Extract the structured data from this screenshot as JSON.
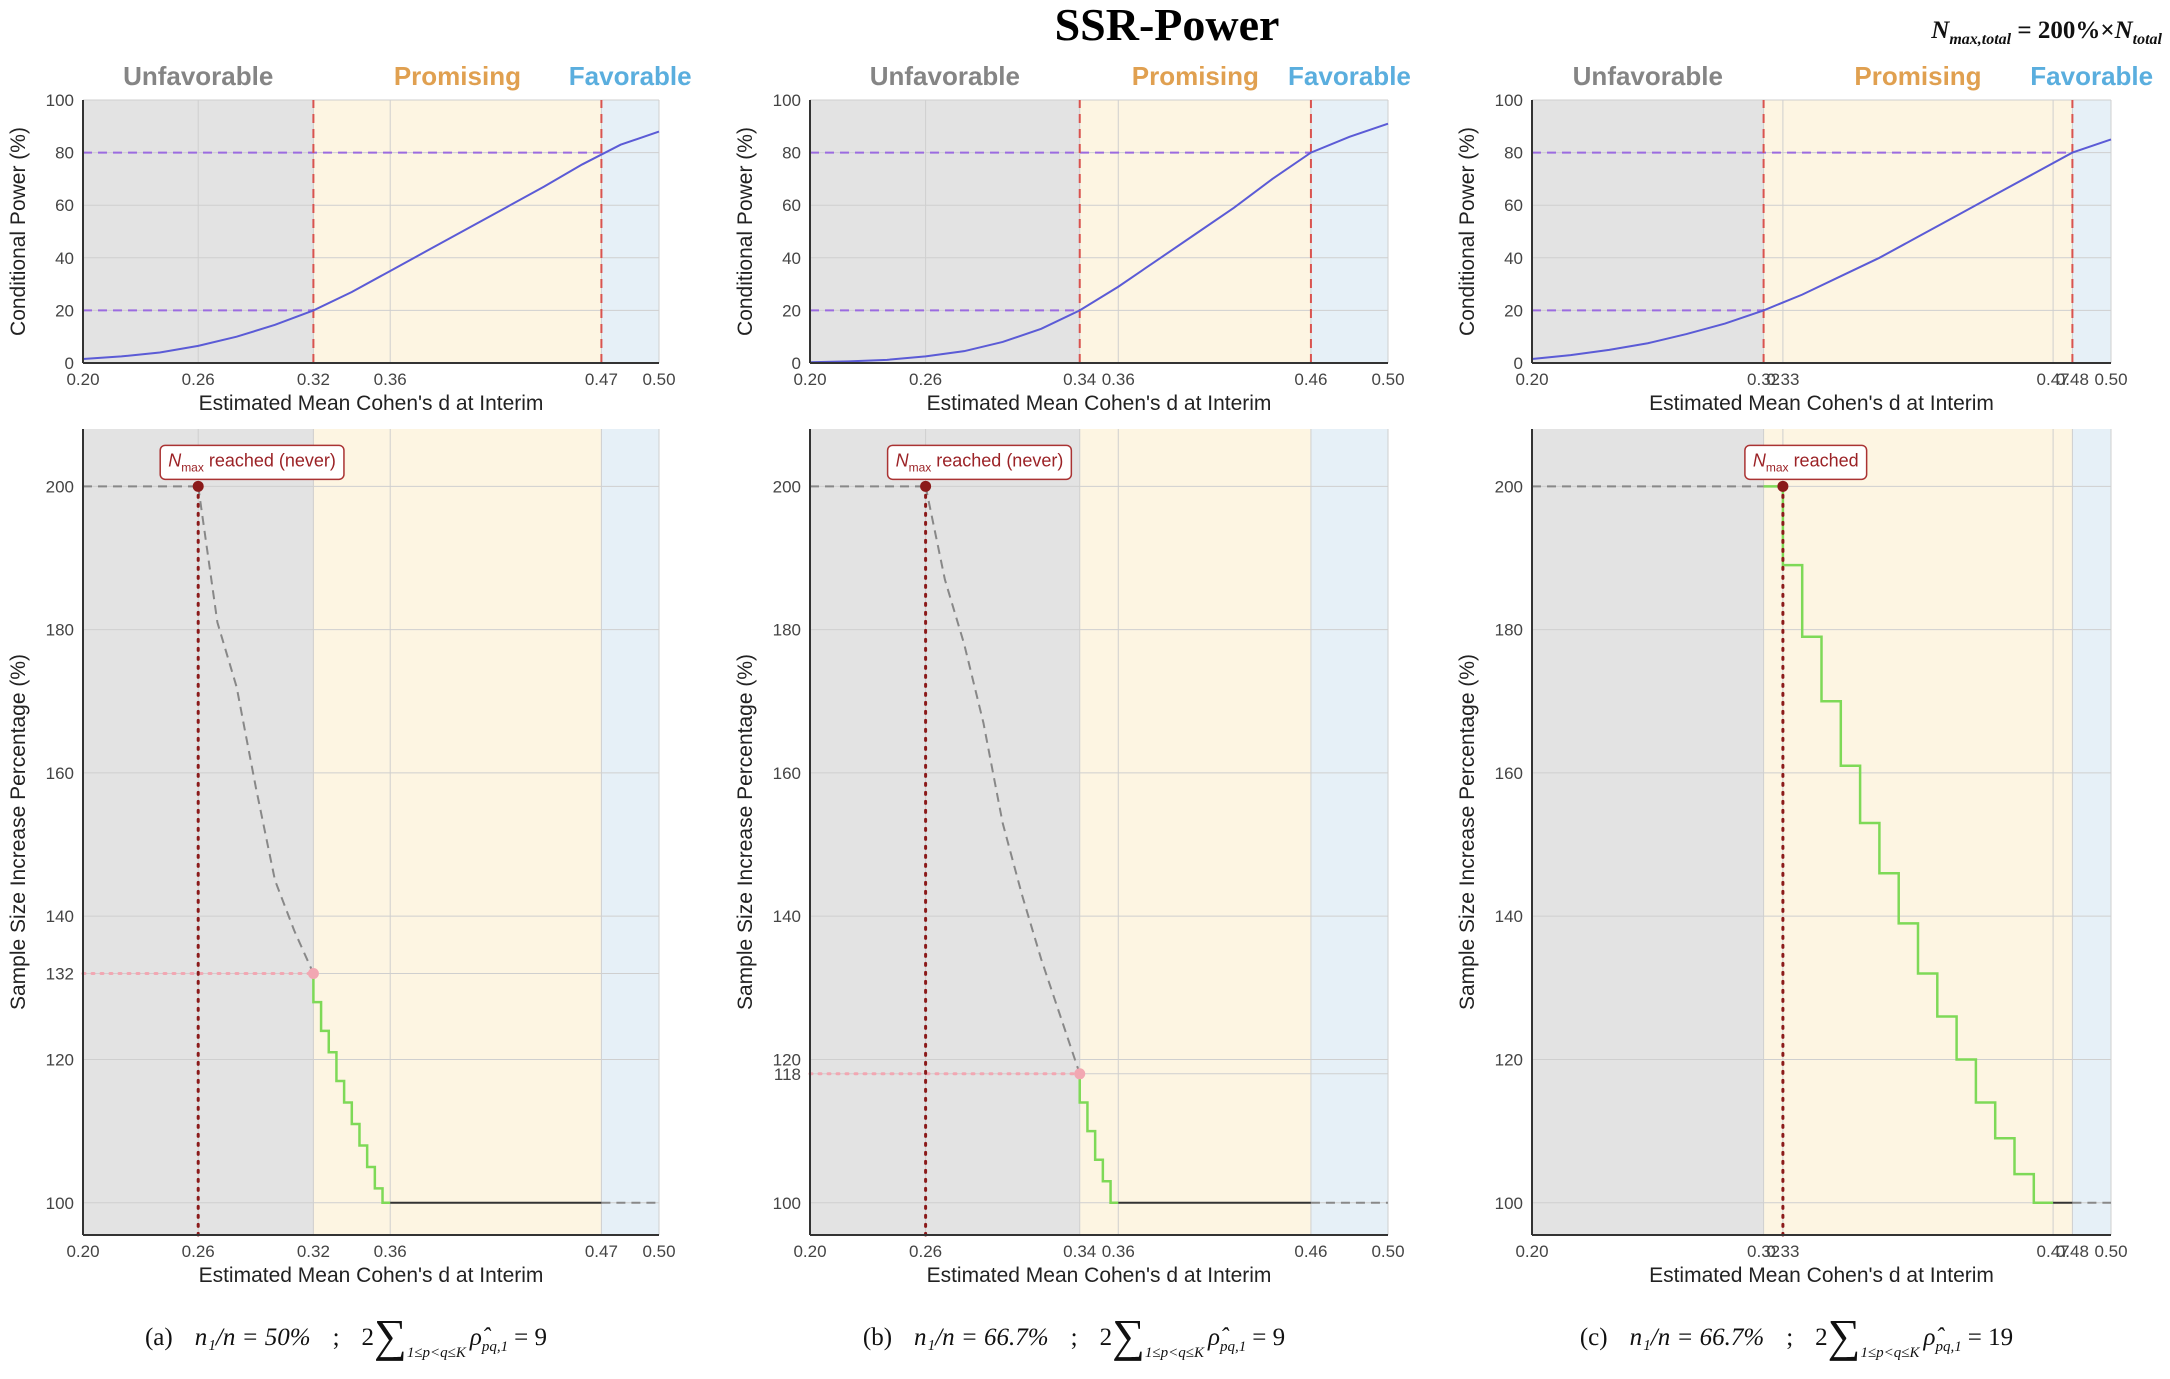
{
  "title": "SSR-Power",
  "formula": {
    "lhs": "N",
    "lhs_sub": "max,total",
    "op": " = 200%×",
    "rhs": "N",
    "rhs_sub": "total"
  },
  "chart_data": [
    {
      "type": "line",
      "xlabel": "Estimated Mean Cohen's d at Interim",
      "ylabel": "Conditional Power (%)",
      "xlim": [
        0.2,
        0.5
      ],
      "ylim": [
        0,
        100
      ],
      "xticks": [
        {
          "value": 0.2,
          "label": "0.20"
        },
        0.26,
        0.32,
        0.36,
        0.47,
        {
          "value": 0.5,
          "label": "0.50"
        }
      ],
      "yticks": [
        0,
        20,
        40,
        60,
        80,
        100
      ],
      "grid": true,
      "zones": [
        {
          "label": "Unfavorable",
          "from": 0.2,
          "to": 0.32,
          "color": "#e3e3e3",
          "label_color": "#858585"
        },
        {
          "label": "Promising",
          "from": 0.32,
          "to": 0.47,
          "color": "#fdf5e2",
          "label_color": "#e0a050"
        },
        {
          "label": "Favorable",
          "from": 0.47,
          "to": 0.5,
          "color": "#e6f0f7",
          "label_color": "#5aaede"
        }
      ],
      "series": [
        {
          "color": "#9b6be0",
          "dash": "dashed",
          "width": 2,
          "x": [
            0.2,
            0.32
          ],
          "values": [
            20,
            20
          ]
        },
        {
          "color": "#9b6be0",
          "dash": "dashed",
          "width": 2,
          "x": [
            0.2,
            0.47
          ],
          "values": [
            80,
            80
          ]
        },
        {
          "color": "#d9534f",
          "dash": "dashed",
          "width": 2,
          "x": [
            0.32,
            0.32
          ],
          "values": [
            0,
            100
          ]
        },
        {
          "color": "#d9534f",
          "dash": "dashed",
          "width": 2,
          "x": [
            0.47,
            0.47
          ],
          "values": [
            0,
            100
          ]
        },
        {
          "color": "#5b5bd6",
          "dash": "solid",
          "width": 2,
          "x": [
            0.2,
            0.22,
            0.24,
            0.26,
            0.28,
            0.3,
            0.32,
            0.34,
            0.36,
            0.38,
            0.4,
            0.42,
            0.44,
            0.46,
            0.48,
            0.5
          ],
          "values": [
            1.5,
            2.5,
            4,
            6.5,
            10,
            14.5,
            20,
            27,
            35,
            43,
            51,
            59,
            67,
            75.5,
            83,
            88
          ]
        }
      ]
    },
    {
      "type": "line",
      "xlabel": "Estimated Mean Cohen's d at Interim",
      "ylabel": "Conditional Power (%)",
      "xlim": [
        0.2,
        0.5
      ],
      "ylim": [
        0,
        100
      ],
      "xticks": [
        {
          "value": 0.2,
          "label": "0.20"
        },
        0.26,
        0.34,
        0.36,
        0.46,
        {
          "value": 0.5,
          "label": "0.50"
        }
      ],
      "yticks": [
        0,
        20,
        40,
        60,
        80,
        100
      ],
      "grid": true,
      "zones": [
        {
          "label": "Unfavorable",
          "from": 0.2,
          "to": 0.34,
          "color": "#e3e3e3",
          "label_color": "#858585"
        },
        {
          "label": "Promising",
          "from": 0.34,
          "to": 0.46,
          "color": "#fdf5e2",
          "label_color": "#e0a050"
        },
        {
          "label": "Favorable",
          "from": 0.46,
          "to": 0.5,
          "color": "#e6f0f7",
          "label_color": "#5aaede"
        }
      ],
      "series": [
        {
          "color": "#9b6be0",
          "dash": "dashed",
          "width": 2,
          "x": [
            0.2,
            0.34
          ],
          "values": [
            20,
            20
          ]
        },
        {
          "color": "#9b6be0",
          "dash": "dashed",
          "width": 2,
          "x": [
            0.2,
            0.46
          ],
          "values": [
            80,
            80
          ]
        },
        {
          "color": "#d9534f",
          "dash": "dashed",
          "width": 2,
          "x": [
            0.34,
            0.34
          ],
          "values": [
            0,
            100
          ]
        },
        {
          "color": "#d9534f",
          "dash": "dashed",
          "width": 2,
          "x": [
            0.46,
            0.46
          ],
          "values": [
            0,
            100
          ]
        },
        {
          "color": "#5b5bd6",
          "dash": "solid",
          "width": 2,
          "x": [
            0.2,
            0.22,
            0.24,
            0.26,
            0.28,
            0.3,
            0.32,
            0.34,
            0.36,
            0.38,
            0.4,
            0.42,
            0.44,
            0.46,
            0.48,
            0.5
          ],
          "values": [
            0.3,
            0.6,
            1.2,
            2.5,
            4.5,
            8,
            13,
            20,
            29,
            39,
            49,
            59,
            70,
            80,
            86,
            91
          ]
        }
      ]
    },
    {
      "type": "line",
      "xlabel": "Estimated Mean Cohen's d at Interim",
      "ylabel": "Conditional Power (%)",
      "xlim": [
        0.2,
        0.5
      ],
      "ylim": [
        0,
        100
      ],
      "xticks": [
        {
          "value": 0.2,
          "label": "0.20"
        },
        0.32,
        0.33,
        0.47,
        0.48,
        {
          "value": 0.5,
          "label": "0.50"
        }
      ],
      "yticks": [
        0,
        20,
        40,
        60,
        80,
        100
      ],
      "grid": true,
      "zones": [
        {
          "label": "Unfavorable",
          "from": 0.2,
          "to": 0.32,
          "color": "#e3e3e3",
          "label_color": "#858585"
        },
        {
          "label": "Promising",
          "from": 0.32,
          "to": 0.48,
          "color": "#fdf5e2",
          "label_color": "#e0a050"
        },
        {
          "label": "Favorable",
          "from": 0.48,
          "to": 0.5,
          "color": "#e6f0f7",
          "label_color": "#5aaede"
        }
      ],
      "series": [
        {
          "color": "#9b6be0",
          "dash": "dashed",
          "width": 2,
          "x": [
            0.2,
            0.32
          ],
          "values": [
            20,
            20
          ]
        },
        {
          "color": "#9b6be0",
          "dash": "dashed",
          "width": 2,
          "x": [
            0.2,
            0.48
          ],
          "values": [
            80,
            80
          ]
        },
        {
          "color": "#d9534f",
          "dash": "dashed",
          "width": 2,
          "x": [
            0.32,
            0.32
          ],
          "values": [
            0,
            100
          ]
        },
        {
          "color": "#d9534f",
          "dash": "dashed",
          "width": 2,
          "x": [
            0.48,
            0.48
          ],
          "values": [
            0,
            100
          ]
        },
        {
          "color": "#5b5bd6",
          "dash": "solid",
          "width": 2,
          "x": [
            0.2,
            0.22,
            0.24,
            0.26,
            0.28,
            0.3,
            0.32,
            0.34,
            0.36,
            0.38,
            0.4,
            0.42,
            0.44,
            0.46,
            0.48,
            0.5
          ],
          "values": [
            1.5,
            3,
            5,
            7.5,
            11,
            15,
            20,
            26,
            33,
            40,
            48,
            56,
            64,
            72,
            80,
            85
          ]
        }
      ]
    },
    {
      "type": "line",
      "xlabel": "Estimated Mean Cohen's d at Interim",
      "ylabel": "Sample Size Increase Percentage (%)",
      "xlim": [
        0.2,
        0.5
      ],
      "ylim": [
        95.5,
        208
      ],
      "xticks": [
        {
          "value": 0.2,
          "label": "0.20"
        },
        0.26,
        0.32,
        0.36,
        0.47,
        {
          "value": 0.5,
          "label": "0.50"
        }
      ],
      "yticks": [
        100,
        120,
        132,
        140,
        160,
        180,
        200
      ],
      "grid": true,
      "zones": [
        {
          "from": 0.2,
          "to": 0.32,
          "color": "#e3e3e3"
        },
        {
          "from": 0.32,
          "to": 0.47,
          "color": "#fdf5e2"
        },
        {
          "from": 0.47,
          "to": 0.5,
          "color": "#e6f0f7"
        }
      ],
      "series": [
        {
          "color": "#888888",
          "dash": "dashed",
          "width": 2,
          "x": [
            0.2,
            0.26
          ],
          "values": [
            200,
            200
          ]
        },
        {
          "color": "#f2a7b2",
          "dash": "dotted",
          "width": 3,
          "x": [
            0.2,
            0.32
          ],
          "values": [
            132,
            132
          ]
        },
        {
          "color": "#888888",
          "dash": "dashed",
          "width": 2,
          "x": [
            0.26,
            0.27,
            0.28,
            0.29,
            0.3,
            0.31,
            0.32
          ],
          "values": [
            200,
            181,
            172,
            158,
            145,
            138,
            132
          ]
        },
        {
          "color": "#7ed957",
          "dash": "solid",
          "width": 2.5,
          "step": true,
          "x": [
            0.32,
            0.324,
            0.328,
            0.332,
            0.336,
            0.34,
            0.344,
            0.348,
            0.352,
            0.356,
            0.36
          ],
          "values": [
            132,
            128,
            124,
            121,
            117,
            114,
            111,
            108,
            105,
            102,
            100
          ]
        },
        {
          "color": "#333333",
          "dash": "solid",
          "width": 2,
          "x": [
            0.36,
            0.47
          ],
          "values": [
            100,
            100
          ]
        },
        {
          "color": "#888888",
          "dash": "dashed",
          "width": 2,
          "x": [
            0.47,
            0.5
          ],
          "values": [
            100,
            100
          ]
        },
        {
          "color": "#8b1a1a",
          "dash": "dotted",
          "width": 3,
          "x": [
            0.26,
            0.26
          ],
          "values": [
            200,
            95.5
          ]
        }
      ],
      "points": [
        {
          "x": 0.26,
          "y": 200,
          "color": "#8b1a1a"
        },
        {
          "x": 0.32,
          "y": 132,
          "color": "#f2a7b2"
        }
      ],
      "annotation": {
        "x": 0.26,
        "y": 200,
        "symbol": "N",
        "subscript": "max",
        "text": "reached (never)"
      },
      "caption": {
        "label": "(a)",
        "ratio": "n₁/n = 50%",
        "separator": ";",
        "sum_coef": "2",
        "sum_symbol": "∑",
        "sum_range": "1≤p<q≤K",
        "sum_term": "ρ̂",
        "sum_term_sub": "pq,1",
        "sum_value": "= 9"
      }
    },
    {
      "type": "line",
      "xlabel": "Estimated Mean Cohen's d at Interim",
      "ylabel": "Sample Size Increase Percentage (%)",
      "xlim": [
        0.2,
        0.5
      ],
      "ylim": [
        95.5,
        208
      ],
      "xticks": [
        {
          "value": 0.2,
          "label": "0.20"
        },
        0.26,
        0.34,
        0.36,
        0.46,
        {
          "value": 0.5,
          "label": "0.50"
        }
      ],
      "yticks": [
        100,
        118,
        120,
        140,
        160,
        180,
        200
      ],
      "grid": true,
      "zones": [
        {
          "from": 0.2,
          "to": 0.34,
          "color": "#e3e3e3"
        },
        {
          "from": 0.34,
          "to": 0.46,
          "color": "#fdf5e2"
        },
        {
          "from": 0.46,
          "to": 0.5,
          "color": "#e6f0f7"
        }
      ],
      "series": [
        {
          "color": "#888888",
          "dash": "dashed",
          "width": 2,
          "x": [
            0.2,
            0.26
          ],
          "values": [
            200,
            200
          ]
        },
        {
          "color": "#f2a7b2",
          "dash": "dotted",
          "width": 3,
          "x": [
            0.2,
            0.34
          ],
          "values": [
            118,
            118
          ]
        },
        {
          "color": "#888888",
          "dash": "dashed",
          "width": 2,
          "x": [
            0.26,
            0.27,
            0.28,
            0.29,
            0.3,
            0.31,
            0.32,
            0.33,
            0.34
          ],
          "values": [
            200,
            187,
            178,
            167,
            153,
            143,
            134,
            126,
            118
          ]
        },
        {
          "color": "#7ed957",
          "dash": "solid",
          "width": 2.5,
          "step": true,
          "x": [
            0.34,
            0.344,
            0.348,
            0.352,
            0.356,
            0.36
          ],
          "values": [
            118,
            114,
            110,
            106,
            103,
            100
          ]
        },
        {
          "color": "#333333",
          "dash": "solid",
          "width": 2,
          "x": [
            0.36,
            0.46
          ],
          "values": [
            100,
            100
          ]
        },
        {
          "color": "#888888",
          "dash": "dashed",
          "width": 2,
          "x": [
            0.46,
            0.5
          ],
          "values": [
            100,
            100
          ]
        },
        {
          "color": "#8b1a1a",
          "dash": "dotted",
          "width": 3,
          "x": [
            0.26,
            0.26
          ],
          "values": [
            200,
            95.5
          ]
        }
      ],
      "points": [
        {
          "x": 0.26,
          "y": 200,
          "color": "#8b1a1a"
        },
        {
          "x": 0.34,
          "y": 118,
          "color": "#f2a7b2"
        }
      ],
      "annotation": {
        "x": 0.26,
        "y": 200,
        "symbol": "N",
        "subscript": "max",
        "text": "reached (never)"
      },
      "caption": {
        "label": "(b)",
        "ratio": "n₁/n = 66.7%",
        "separator": ";",
        "sum_coef": "2",
        "sum_symbol": "∑",
        "sum_range": "1≤p<q≤K",
        "sum_term": "ρ̂",
        "sum_term_sub": "pq,1",
        "sum_value": "= 9"
      }
    },
    {
      "type": "line",
      "xlabel": "Estimated Mean Cohen's d at Interim",
      "ylabel": "Sample Size Increase Percentage (%)",
      "xlim": [
        0.2,
        0.5
      ],
      "ylim": [
        95.5,
        208
      ],
      "xticks": [
        {
          "value": 0.2,
          "label": "0.20"
        },
        0.32,
        0.33,
        0.47,
        0.48,
        {
          "value": 0.5,
          "label": "0.50"
        }
      ],
      "yticks": [
        100,
        120,
        140,
        160,
        180,
        200
      ],
      "grid": true,
      "zones": [
        {
          "from": 0.2,
          "to": 0.32,
          "color": "#e3e3e3"
        },
        {
          "from": 0.32,
          "to": 0.48,
          "color": "#fdf5e2"
        },
        {
          "from": 0.48,
          "to": 0.5,
          "color": "#e6f0f7"
        }
      ],
      "series": [
        {
          "color": "#888888",
          "dash": "dashed",
          "width": 2,
          "x": [
            0.2,
            0.32
          ],
          "values": [
            200,
            200
          ]
        },
        {
          "color": "#7ed957",
          "dash": "solid",
          "width": 2.5,
          "step": true,
          "x": [
            0.32,
            0.33,
            0.34,
            0.35,
            0.36,
            0.37,
            0.38,
            0.39,
            0.4,
            0.41,
            0.42,
            0.43,
            0.44,
            0.45,
            0.46,
            0.47
          ],
          "values": [
            200,
            200,
            189,
            179,
            170,
            161,
            153,
            146,
            139,
            132,
            126,
            120,
            114,
            109,
            104,
            100
          ]
        },
        {
          "color": "#333333",
          "dash": "solid",
          "width": 2,
          "x": [
            0.47,
            0.48
          ],
          "values": [
            100,
            100
          ]
        },
        {
          "color": "#888888",
          "dash": "dashed",
          "width": 2,
          "x": [
            0.48,
            0.5
          ],
          "values": [
            100,
            100
          ]
        },
        {
          "color": "#8b1a1a",
          "dash": "dotted",
          "width": 3,
          "x": [
            0.33,
            0.33
          ],
          "values": [
            200,
            95.5
          ]
        }
      ],
      "points": [
        {
          "x": 0.33,
          "y": 200,
          "color": "#8b1a1a"
        }
      ],
      "annotation": {
        "x": 0.33,
        "y": 200,
        "symbol": "N",
        "subscript": "max",
        "text": "reached"
      },
      "caption": {
        "label": "(c)",
        "ratio": "n₁/n = 66.7%",
        "separator": ";",
        "sum_coef": "2",
        "sum_symbol": "∑",
        "sum_range": "1≤p<q≤K",
        "sum_term": "ρ̂",
        "sum_term_sub": "pq,1",
        "sum_value": "= 19"
      }
    }
  ]
}
